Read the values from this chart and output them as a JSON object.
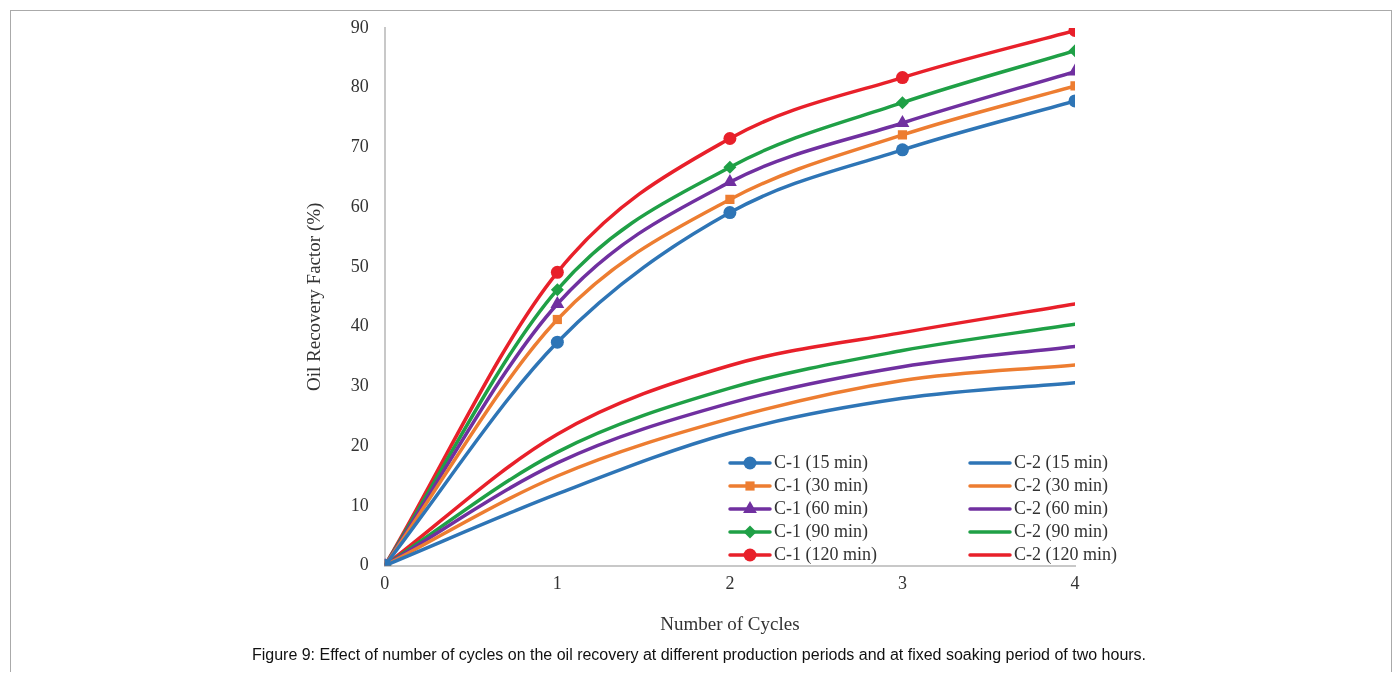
{
  "chart_data": {
    "type": "line",
    "xlabel": "Number of Cycles",
    "ylabel": "Oil Recovery Factor (%)",
    "x": [
      0,
      1,
      2,
      3,
      4
    ],
    "xlim": [
      0,
      4
    ],
    "xticks": [
      0,
      1,
      2,
      3,
      4
    ],
    "ylim": [
      0,
      90
    ],
    "yticks": [
      0,
      10,
      20,
      30,
      40,
      50,
      60,
      70,
      80,
      90
    ],
    "grid": false,
    "legend": "bottom right",
    "line_style": "solid",
    "series": [
      {
        "name": "C-1 (15 min)",
        "color": "#2e75b6",
        "marker": "circle",
        "values": [
          0,
          37.4,
          59.1,
          69.6,
          77.8
        ]
      },
      {
        "name": "C-2 (15 min)",
        "color": "#2e75b6",
        "marker": "none",
        "values": [
          0,
          12,
          22.2,
          28,
          30.6
        ]
      },
      {
        "name": "C-1 (30 min)",
        "color": "#ed7d31",
        "marker": "square",
        "values": [
          0,
          41.2,
          61.3,
          72.1,
          80.3
        ]
      },
      {
        "name": "C-2 (30 min)",
        "color": "#ed7d31",
        "marker": "none",
        "values": [
          0,
          15,
          24.6,
          31,
          33.6
        ]
      },
      {
        "name": "C-1 (60 min)",
        "color": "#7030a0",
        "marker": "triangle",
        "values": [
          0,
          43.8,
          64.2,
          74.1,
          82.7
        ]
      },
      {
        "name": "C-2 (60 min)",
        "color": "#7030a0",
        "marker": "none",
        "values": [
          0,
          17.2,
          27.2,
          33.3,
          36.7
        ]
      },
      {
        "name": "C-1 (90 min)",
        "color": "#1fa046",
        "marker": "diamond",
        "values": [
          0,
          46.2,
          66.7,
          77.5,
          86.2
        ]
      },
      {
        "name": "C-2 (90 min)",
        "color": "#1fa046",
        "marker": "none",
        "values": [
          0,
          19,
          29.7,
          36,
          40.4
        ]
      },
      {
        "name": "C-1 (120 min)",
        "color": "#e8202a",
        "marker": "circle",
        "values": [
          0,
          49.1,
          71.5,
          81.7,
          89.6
        ]
      },
      {
        "name": "C-2 (120 min)",
        "color": "#e8202a",
        "marker": "none",
        "values": [
          0,
          22,
          33.5,
          39,
          43.8
        ]
      }
    ],
    "annotations": [
      "Figure 9: Effect of number of cycles on the oil recovery at different production periods and at fixed soaking period of two hours."
    ]
  }
}
